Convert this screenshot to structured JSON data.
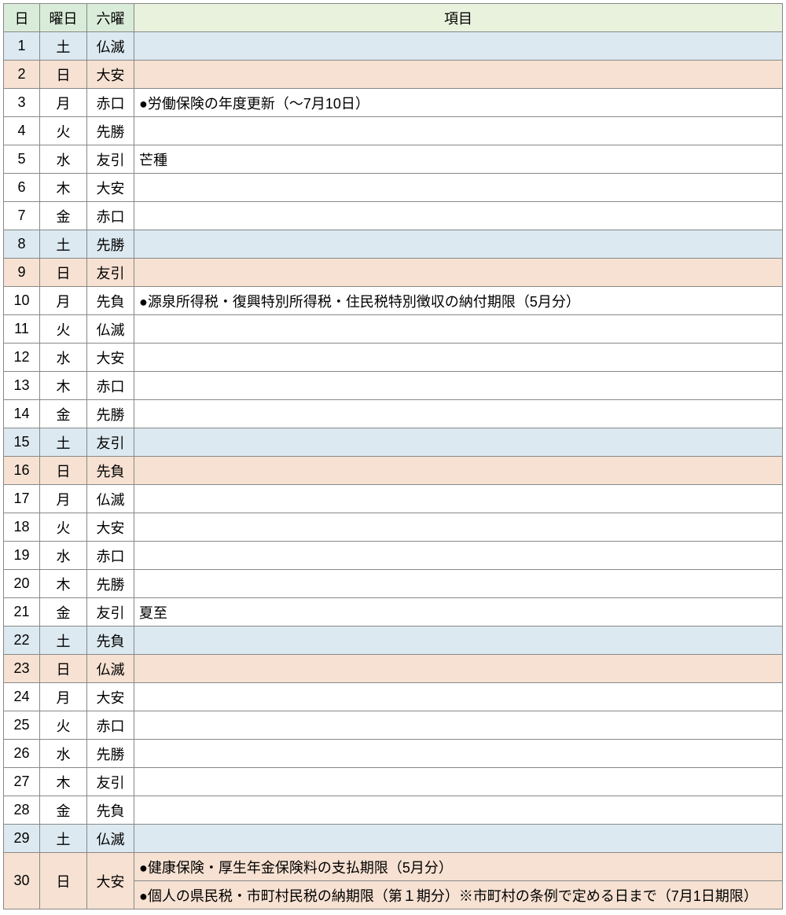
{
  "header": {
    "day": "日",
    "weekday": "曜日",
    "rokuyo": "六曜",
    "item": "項目"
  },
  "colors": {
    "header_left_bg": "#d9ecd9",
    "header_item_bg": "#e9f2dc",
    "saturday_bg": "#dce9f0",
    "sunday_bg": "#f6e1d2",
    "weekday_bg": "#ffffff",
    "border": "#888888"
  },
  "rows": [
    {
      "day": "1",
      "wday": "土",
      "roku": "仏滅",
      "item": "",
      "cls": "sat"
    },
    {
      "day": "2",
      "wday": "日",
      "roku": "大安",
      "item": "",
      "cls": "sun"
    },
    {
      "day": "3",
      "wday": "月",
      "roku": "赤口",
      "item": "●労働保険の年度更新（～7月10日）",
      "cls": "wk"
    },
    {
      "day": "4",
      "wday": "火",
      "roku": "先勝",
      "item": "",
      "cls": "wk"
    },
    {
      "day": "5",
      "wday": "水",
      "roku": "友引",
      "item": "芒種",
      "cls": "wk"
    },
    {
      "day": "6",
      "wday": "木",
      "roku": "大安",
      "item": "",
      "cls": "wk"
    },
    {
      "day": "7",
      "wday": "金",
      "roku": "赤口",
      "item": "",
      "cls": "wk"
    },
    {
      "day": "8",
      "wday": "土",
      "roku": "先勝",
      "item": "",
      "cls": "sat"
    },
    {
      "day": "9",
      "wday": "日",
      "roku": "友引",
      "item": "",
      "cls": "sun"
    },
    {
      "day": "10",
      "wday": "月",
      "roku": "先負",
      "item": "●源泉所得税・復興特別所得税・住民税特別徴収の納付期限（5月分）",
      "cls": "wk"
    },
    {
      "day": "11",
      "wday": "火",
      "roku": "仏滅",
      "item": "",
      "cls": "wk"
    },
    {
      "day": "12",
      "wday": "水",
      "roku": "大安",
      "item": "",
      "cls": "wk"
    },
    {
      "day": "13",
      "wday": "木",
      "roku": "赤口",
      "item": "",
      "cls": "wk"
    },
    {
      "day": "14",
      "wday": "金",
      "roku": "先勝",
      "item": "",
      "cls": "wk"
    },
    {
      "day": "15",
      "wday": "土",
      "roku": "友引",
      "item": "",
      "cls": "sat"
    },
    {
      "day": "16",
      "wday": "日",
      "roku": "先負",
      "item": "",
      "cls": "sun"
    },
    {
      "day": "17",
      "wday": "月",
      "roku": "仏滅",
      "item": "",
      "cls": "wk"
    },
    {
      "day": "18",
      "wday": "火",
      "roku": "大安",
      "item": "",
      "cls": "wk"
    },
    {
      "day": "19",
      "wday": "水",
      "roku": "赤口",
      "item": "",
      "cls": "wk"
    },
    {
      "day": "20",
      "wday": "木",
      "roku": "先勝",
      "item": "",
      "cls": "wk"
    },
    {
      "day": "21",
      "wday": "金",
      "roku": "友引",
      "item": "夏至",
      "cls": "wk"
    },
    {
      "day": "22",
      "wday": "土",
      "roku": "先負",
      "item": "",
      "cls": "sat"
    },
    {
      "day": "23",
      "wday": "日",
      "roku": "仏滅",
      "item": "",
      "cls": "sun"
    },
    {
      "day": "24",
      "wday": "月",
      "roku": "大安",
      "item": "",
      "cls": "wk"
    },
    {
      "day": "25",
      "wday": "火",
      "roku": "赤口",
      "item": "",
      "cls": "wk"
    },
    {
      "day": "26",
      "wday": "水",
      "roku": "先勝",
      "item": "",
      "cls": "wk"
    },
    {
      "day": "27",
      "wday": "木",
      "roku": "友引",
      "item": "",
      "cls": "wk"
    },
    {
      "day": "28",
      "wday": "金",
      "roku": "先負",
      "item": "",
      "cls": "wk"
    },
    {
      "day": "29",
      "wday": "土",
      "roku": "仏滅",
      "item": "",
      "cls": "sat"
    }
  ],
  "last": {
    "day": "30",
    "wday": "日",
    "roku": "大安",
    "cls": "sun",
    "item1": "●健康保険・厚生年金保険料の支払期限（5月分）",
    "item2": "●個人の県民税・市町村民税の納期限（第１期分）※市町村の条例で定める日まで（7月1日期限）"
  }
}
